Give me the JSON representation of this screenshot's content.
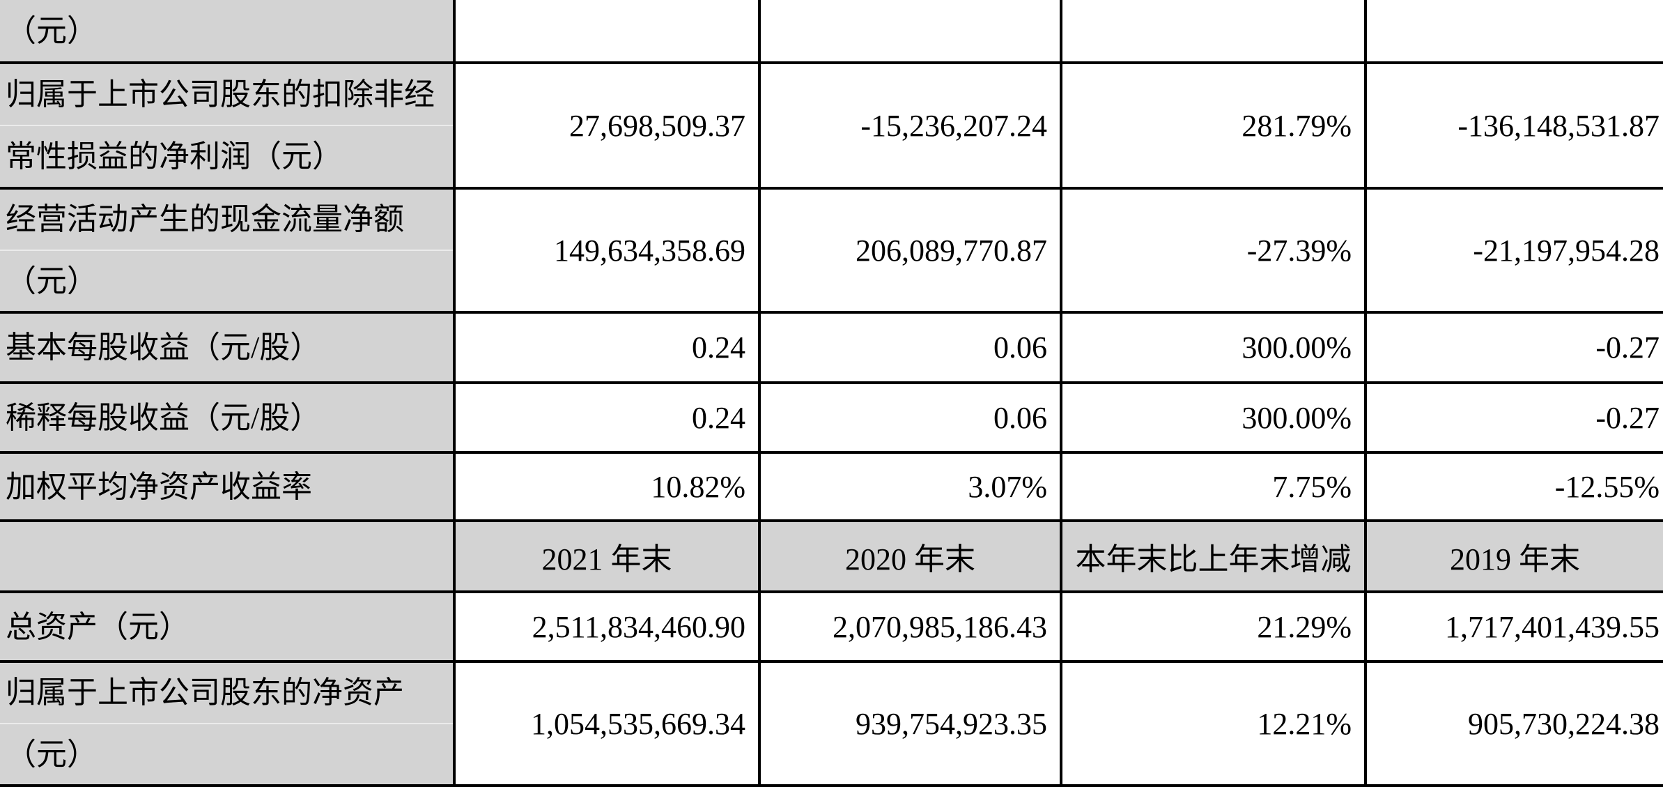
{
  "table": {
    "colors": {
      "label_bg": "#d3d3d3",
      "header_bg": "#d3d3d3",
      "cell_bg": "#ffffff",
      "border": "#000000",
      "text": "#000000"
    },
    "rows": [
      {
        "label": "（元）",
        "values": [
          "",
          "",
          "",
          ""
        ]
      },
      {
        "label": "归属于上市公司股东的扣除非经\n常性损益的净利润（元）",
        "values": [
          "27,698,509.37",
          "-15,236,207.24",
          "281.79%",
          "-136,148,531.87"
        ]
      },
      {
        "label": "经营活动产生的现金流量净额\n（元）",
        "values": [
          "149,634,358.69",
          "206,089,770.87",
          "-27.39%",
          "-21,197,954.28"
        ]
      },
      {
        "label": "基本每股收益（元/股）",
        "values": [
          "0.24",
          "0.06",
          "300.00%",
          "-0.27"
        ]
      },
      {
        "label": "稀释每股收益（元/股）",
        "values": [
          "0.24",
          "0.06",
          "300.00%",
          "-0.27"
        ]
      },
      {
        "label": "加权平均净资产收益率",
        "values": [
          "10.82%",
          "3.07%",
          "7.75%",
          "-12.55%"
        ]
      },
      {
        "label": "",
        "values": [
          "2021 年末",
          "2020 年末",
          "本年末比上年末增减",
          "2019 年末"
        ]
      },
      {
        "label": "总资产（元）",
        "values": [
          "2,511,834,460.90",
          "2,070,985,186.43",
          "21.29%",
          "1,717,401,439.55"
        ]
      },
      {
        "label": "归属于上市公司股东的净资产\n（元）",
        "values": [
          "1,054,535,669.34",
          "939,754,923.35",
          "12.21%",
          "905,730,224.38"
        ]
      }
    ]
  }
}
